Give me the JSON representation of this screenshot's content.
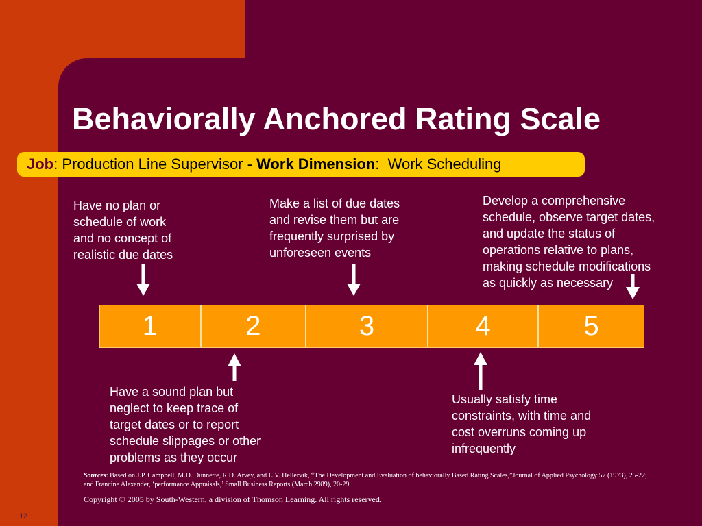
{
  "header": {
    "title": "Behaviorally Anchored Rating Scale"
  },
  "job_bar": {
    "job_label": "Job",
    "job_text": ": Production Line Supervisor - ",
    "dimension_label": "Work Dimension",
    "dimension_text": ":  Work Scheduling"
  },
  "scale": {
    "values": [
      1,
      2,
      3,
      4,
      5
    ]
  },
  "anchors_top": [
    {
      "lines": [
        "Have no plan or",
        "schedule of work",
        "and no concept of",
        "realistic due dates"
      ]
    },
    {
      "lines": [
        "Make a list of due dates",
        "and revise them but are",
        "frequently surprised by",
        "unforeseen events"
      ]
    },
    {
      "lines": [
        "Develop a comprehensive",
        "schedule, observe target dates,",
        "and update the status of",
        "operations relative to plans,",
        "making schedule modifications",
        "as quickly as necessary"
      ]
    }
  ],
  "anchors_bottom": [
    {
      "lines": [
        "Have a sound plan but",
        "neglect to keep trace of",
        "target dates or to report",
        "schedule slippages or other",
        "problems as they occur"
      ]
    },
    {
      "lines": [
        "Usually satisfy time",
        "constraints, with time and",
        "cost overruns coming up",
        "infrequently"
      ]
    }
  ],
  "footer": {
    "sources_label": "Sources",
    "sources_text": ":  Based on J.P. Campbell, M.D. Dunnette, R.D. Arvey, and L.V. Hellervik, “The Development and Evaluation of behaviorally Based Rating Scales,”Journal of Applied Psychology 57 (1973), 25-22; and Francine Alexander, ‘performance Appraisals,’ Small Business Reports (March 2989), 20-29.",
    "copyright": "Copyright © 2005 by South-Western, a division of Thomson Learning. All  rights reserved.",
    "page_number": "12"
  }
}
